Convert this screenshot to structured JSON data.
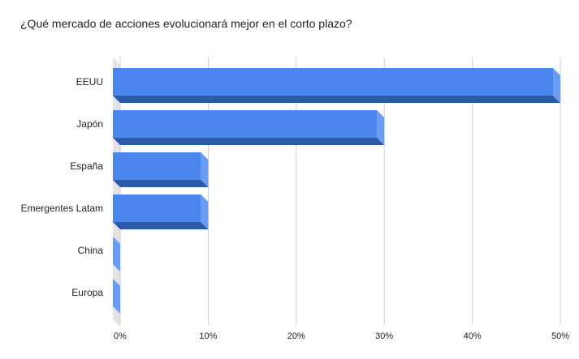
{
  "chart_data": {
    "type": "bar",
    "orientation": "horizontal",
    "style": "3d",
    "title": "¿Qué mercado de acciones evolucionará mejor en el corto plazo?",
    "categories": [
      "EEUU",
      "Japón",
      "España",
      "Emergentes Latam",
      "China",
      "Europa"
    ],
    "values": [
      50,
      30,
      10,
      10,
      0,
      0
    ],
    "value_unit": "%",
    "xlim": [
      0,
      50
    ],
    "x_ticks": [
      "0%",
      "10%",
      "20%",
      "30%",
      "40%",
      "50%"
    ],
    "grid": true,
    "legend": "none",
    "colors": {
      "bar_front": "#4a86ed",
      "bar_bottom": "#2d5aa8",
      "bar_side": "#6b9cf3",
      "gridline": "#cccccc",
      "floor": "#e3e3e3"
    }
  }
}
